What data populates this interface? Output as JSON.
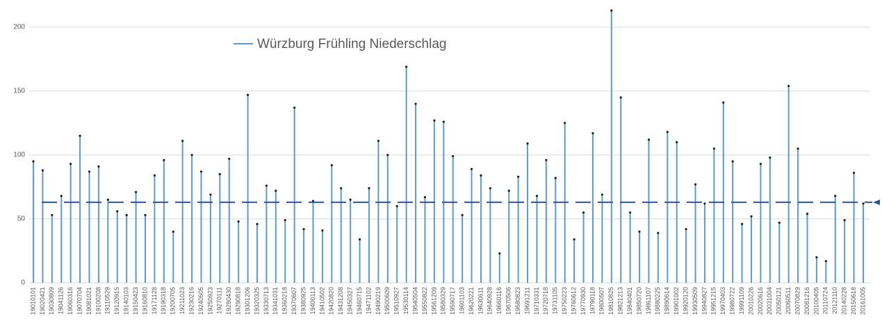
{
  "chart_data": {
    "type": "bar",
    "categories": [
      "19010101",
      "19020421",
      "19030809",
      "19041126",
      "19060316",
      "19070704",
      "19081021",
      "19100208",
      "19110529",
      "19120915",
      "19140103",
      "19150423",
      "19160810",
      "19171128",
      "19190318",
      "19200705",
      "19211023",
      "19230216",
      "19240605",
      "19250923",
      "19270111",
      "19280430",
      "19290818",
      "19301206",
      "19320325",
      "19330713",
      "19341031",
      "19360218",
      "19370607",
      "19380925",
      "19400113",
      "19410502",
      "19420820",
      "19431208",
      "19450327",
      "19460715",
      "19471102",
      "19490219",
      "19500609",
      "19510927",
      "19530114",
      "19540504",
      "19550822",
      "19561209",
      "19580329",
      "19590717",
      "19601103",
      "19620221",
      "19630611",
      "19640928",
      "19660116",
      "19670506",
      "19680823",
      "19691211",
      "19710331",
      "19720718",
      "19731105",
      "19750223",
      "19760612",
      "19770930",
      "19790118",
      "19800507",
      "19810825",
      "19821213",
      "19840401",
      "19850720",
      "19861107",
      "19880225",
      "19890614",
      "19901002",
      "19920120",
      "19930509",
      "19940827",
      "19951215",
      "19970403",
      "19980722",
      "19991109",
      "20010226",
      "20020616",
      "20031004",
      "20050121",
      "20060511",
      "20070829",
      "20081216",
      "20100405",
      "20110724",
      "20121110",
      "20140228",
      "20150618",
      "20161005"
    ],
    "series": [
      {
        "name": "Würzburg Frühling Niederschlag",
        "color": "#5b9bd5",
        "values": [
          95,
          88,
          53,
          68,
          93,
          115,
          87,
          91,
          65,
          56,
          53,
          71,
          53,
          84,
          96,
          40,
          111,
          100,
          87,
          69,
          85,
          97,
          48,
          147,
          46,
          76,
          72,
          49,
          137,
          42,
          64,
          41,
          92,
          74,
          65,
          34,
          74,
          111,
          100,
          60,
          169,
          140,
          67,
          127,
          126,
          99,
          53,
          89,
          84,
          74,
          23,
          72,
          83,
          109,
          68,
          96,
          82,
          125,
          34,
          55,
          117,
          69,
          213,
          145,
          55,
          40,
          112,
          39,
          118,
          110,
          42,
          77,
          62,
          105,
          141,
          95,
          46,
          52,
          93,
          98,
          47,
          154,
          105,
          54,
          20,
          17,
          68,
          49,
          86,
          62
        ]
      }
    ],
    "reference_line": 63,
    "ylim": [
      0,
      216
    ],
    "yticks": [
      0,
      50,
      100,
      150,
      200
    ],
    "grid": true
  }
}
